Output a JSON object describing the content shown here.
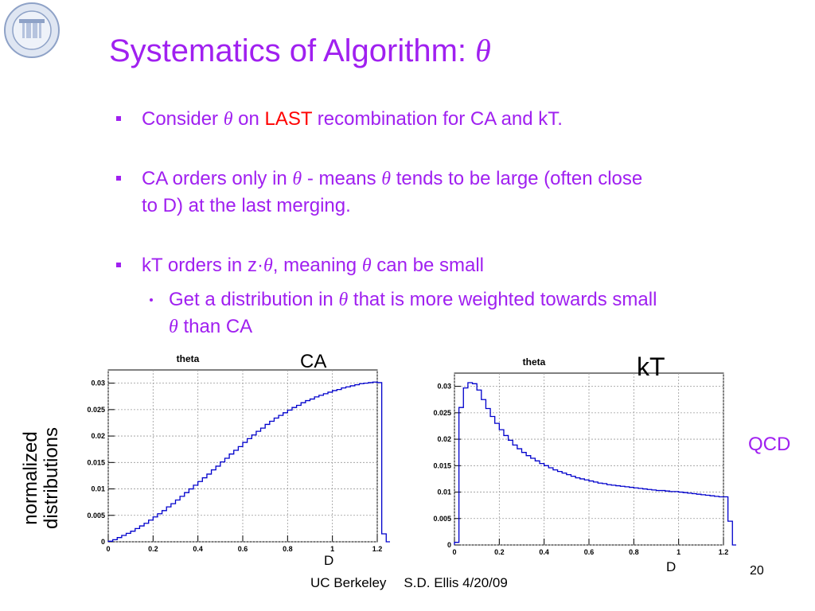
{
  "slide": {
    "title_text": "Systematics of Algorithm: ",
    "title_symbol": "θ",
    "bullets": {
      "b1": {
        "t1": "Consider ",
        "sym": "θ",
        "t2": " on ",
        "red": "LAST",
        "t3": " recombination for CA and kT."
      },
      "b2": {
        "t1": "CA orders only in ",
        "sym1": "θ",
        "t2": " - means ",
        "sym2": "θ",
        "t3": " tends to be large (often close",
        "t4": "to D) at the last merging."
      },
      "b3": {
        "t1": "kT orders in z·",
        "sym1": "θ",
        "t2": ", meaning ",
        "sym2": "θ",
        "t3": " can be small"
      },
      "b3sub": {
        "t1": "Get a distribution in ",
        "sym1": "θ",
        "t2": " that is more weighted towards small",
        "sym2": "θ",
        "t3": " than CA"
      }
    },
    "labels": {
      "ca": "CA",
      "kt": "kT",
      "qcd": "QCD",
      "ylabel_1": "normalized",
      "ylabel_2": "distributions",
      "d_left": "D",
      "d_right": "D"
    },
    "footer": {
      "institution": "UC Berkeley",
      "author_date": "S.D. Ellis 4/20/09",
      "page": "20"
    },
    "colors": {
      "accent": "#a020f0",
      "highlight": "#ff0000",
      "histogram": "#0000cc"
    }
  },
  "chart_data": [
    {
      "type": "bar",
      "title": "theta",
      "xticks": [
        "0",
        "0.2",
        "0.4",
        "0.6",
        "0.8",
        "1",
        "1.2"
      ],
      "yticks": [
        "0",
        "0.005",
        "0.01",
        "0.015",
        "0.02",
        "0.025",
        "0.03"
      ],
      "xlim": [
        0,
        1.2
      ],
      "ylim": [
        0,
        0.0325
      ],
      "grid": true,
      "bin_width": 0.02,
      "values": [
        0.0001,
        0.0004,
        0.0008,
        0.0012,
        0.0016,
        0.002,
        0.0025,
        0.003,
        0.0035,
        0.0041,
        0.0047,
        0.0053,
        0.0059,
        0.0066,
        0.0072,
        0.0079,
        0.0086,
        0.0093,
        0.01,
        0.0107,
        0.0114,
        0.0121,
        0.0128,
        0.0136,
        0.0143,
        0.0151,
        0.0158,
        0.0166,
        0.0173,
        0.018,
        0.0188,
        0.0195,
        0.0202,
        0.0209,
        0.0215,
        0.0222,
        0.0228,
        0.0234,
        0.0239,
        0.0244,
        0.0249,
        0.0254,
        0.0258,
        0.0263,
        0.0267,
        0.027,
        0.0274,
        0.0277,
        0.028,
        0.0283,
        0.0286,
        0.0288,
        0.0291,
        0.0293,
        0.0295,
        0.0297,
        0.0299,
        0.03,
        0.0301,
        0.0302,
        0.0301,
        0.0015,
        0,
        0,
        0,
        0,
        0,
        0,
        0,
        0
      ]
    },
    {
      "type": "bar",
      "title": "theta",
      "xticks": [
        "0",
        "0.2",
        "0.4",
        "0.6",
        "0.8",
        "1",
        "1.2"
      ],
      "yticks": [
        "0",
        "0.005",
        "0.01",
        "0.015",
        "0.02",
        "0.025",
        "0.03"
      ],
      "xlim": [
        0,
        1.2
      ],
      "ylim": [
        0,
        0.0325
      ],
      "grid": true,
      "bin_width": 0.02,
      "values": [
        0.0005,
        0.026,
        0.0297,
        0.0307,
        0.0305,
        0.0293,
        0.0275,
        0.0258,
        0.0243,
        0.023,
        0.0218,
        0.0207,
        0.0198,
        0.0189,
        0.0182,
        0.0175,
        0.0169,
        0.0164,
        0.0159,
        0.0154,
        0.015,
        0.0146,
        0.0142,
        0.0139,
        0.0136,
        0.0133,
        0.013,
        0.0127,
        0.0125,
        0.0123,
        0.0121,
        0.0119,
        0.0117,
        0.0116,
        0.0114,
        0.0113,
        0.0112,
        0.0111,
        0.011,
        0.0109,
        0.0108,
        0.0107,
        0.0106,
        0.0105,
        0.0104,
        0.0103,
        0.0103,
        0.0102,
        0.0101,
        0.0101,
        0.01,
        0.0099,
        0.0098,
        0.0097,
        0.0096,
        0.0095,
        0.0094,
        0.0093,
        0.0092,
        0.0091,
        0.0091,
        0.0045,
        0,
        0,
        0,
        0,
        0,
        0,
        0,
        0
      ]
    }
  ]
}
